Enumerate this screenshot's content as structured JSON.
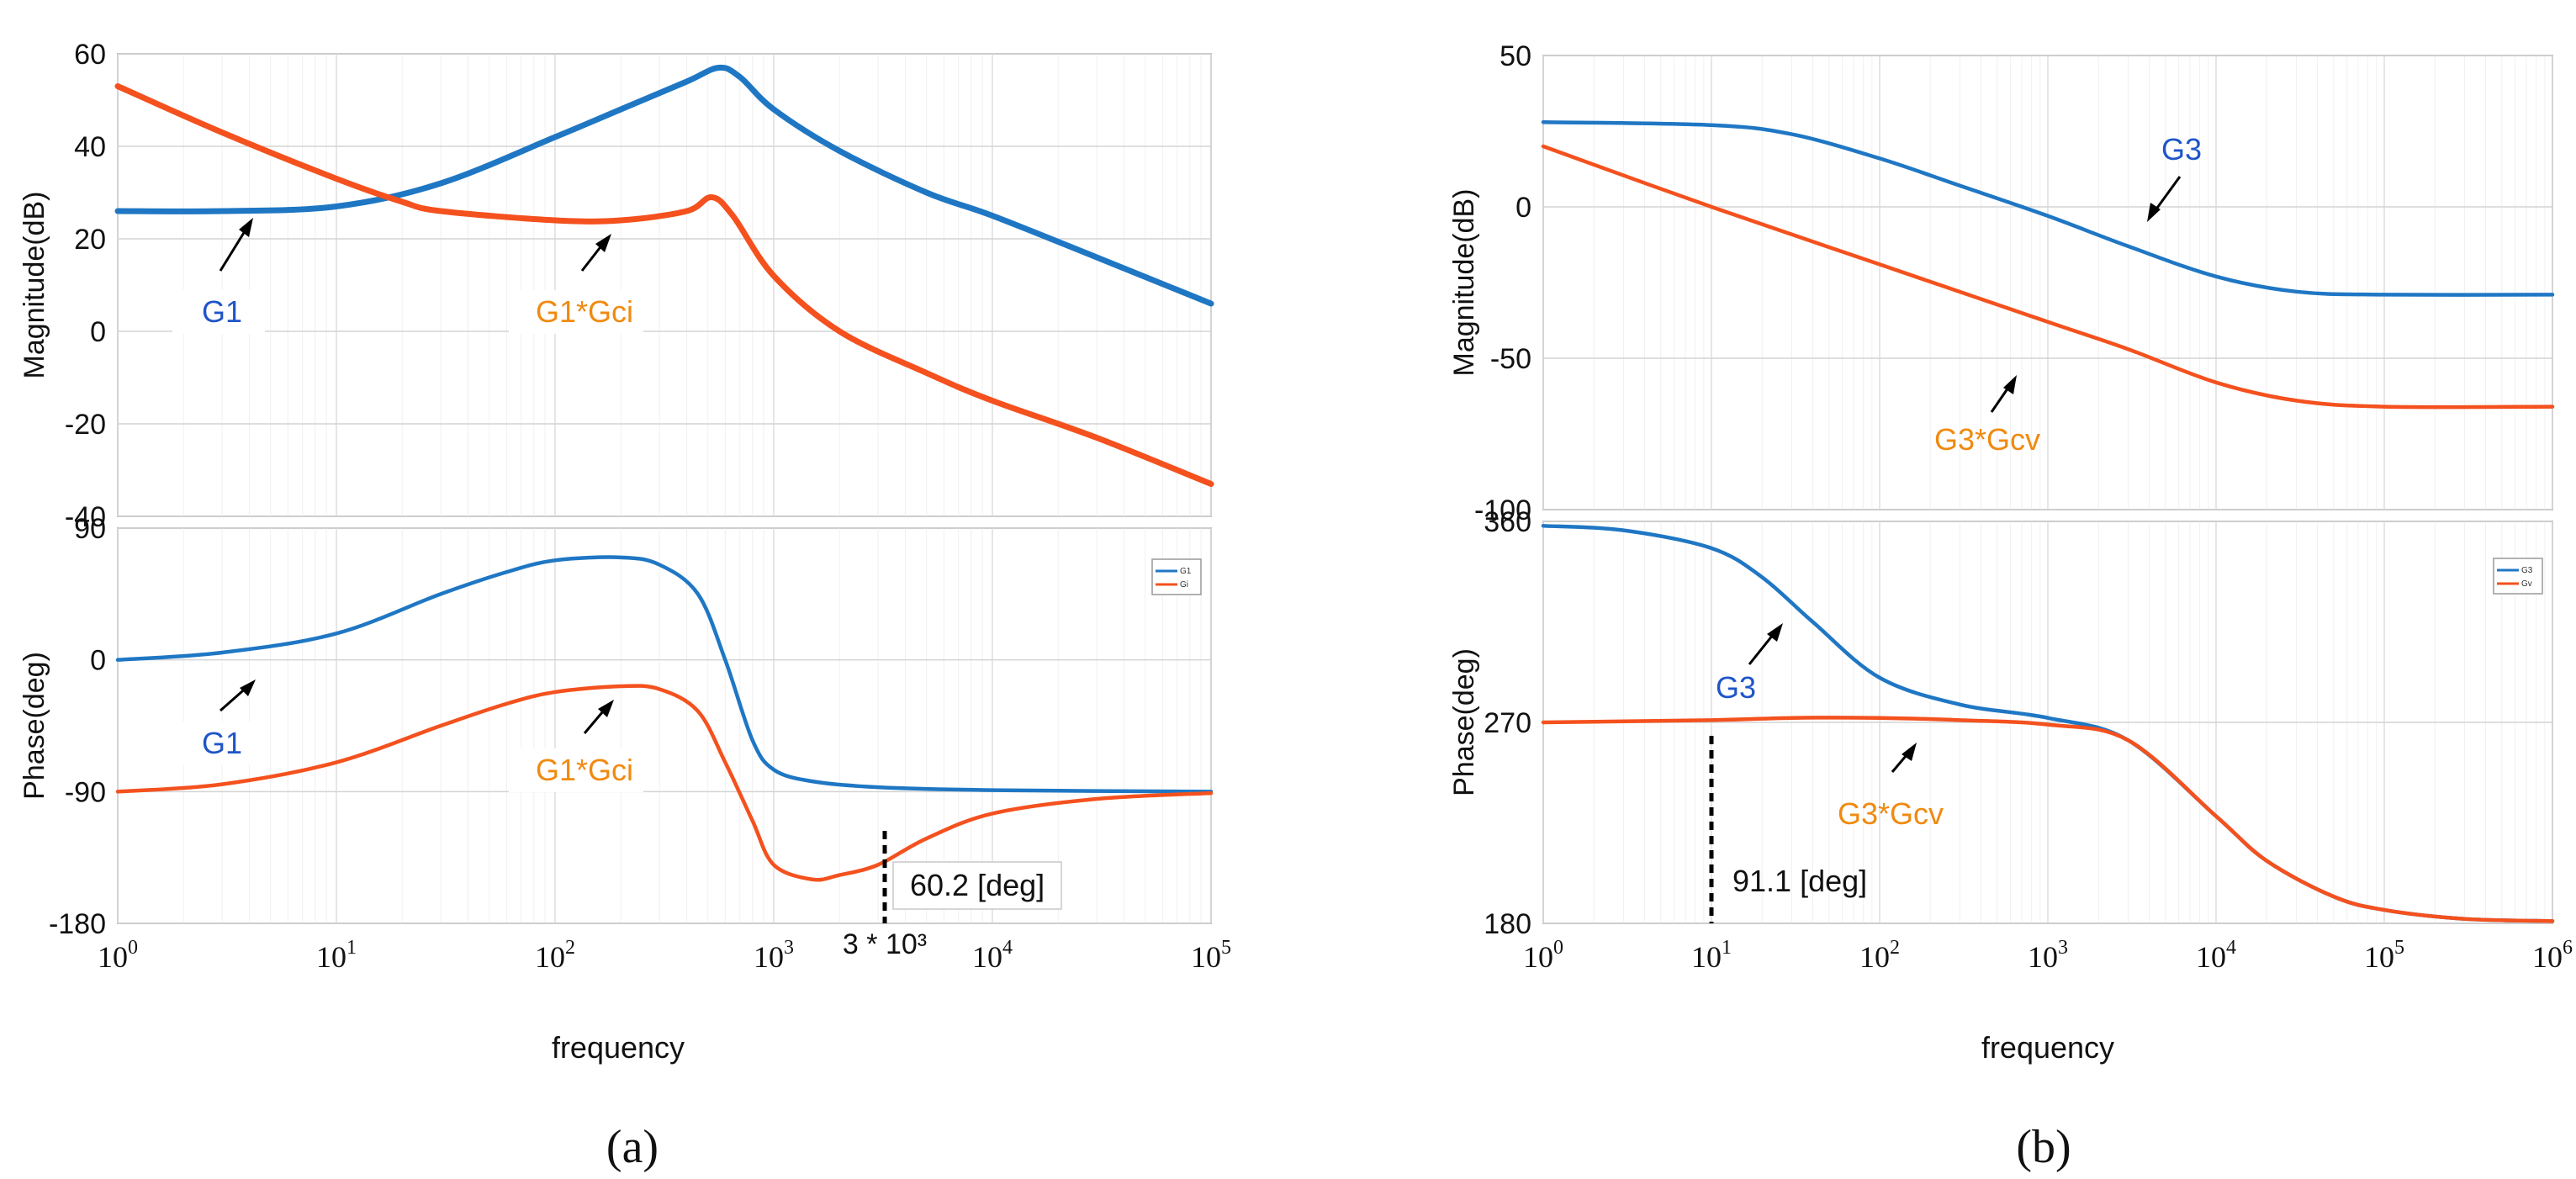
{
  "colors": {
    "blue": "#1f77c4",
    "orange": "#f4511e",
    "label_blue": "#1f55c8",
    "label_orange": "#f08a10"
  },
  "chart_data": [
    {
      "panel": "(a)",
      "type": "line",
      "subplot": "magnitude",
      "xscale": "log",
      "xlim": [
        1,
        100000
      ],
      "ylim": [
        -40,
        60
      ],
      "yticks": [
        60,
        40,
        20,
        0,
        -20,
        -40
      ],
      "ylabel": "Magnitude(dB)",
      "series": [
        {
          "name": "G1",
          "x": [
            1,
            3,
            10,
            30,
            100,
            200,
            400,
            560,
            700,
            1000,
            2000,
            5000,
            10000,
            30000,
            100000
          ],
          "y": [
            26,
            26,
            27,
            32,
            42,
            48,
            54,
            57,
            55,
            48,
            39,
            30,
            25,
            16,
            6
          ]
        },
        {
          "name": "G1*Gci",
          "x": [
            1,
            3,
            10,
            20,
            30,
            100,
            200,
            400,
            520,
            650,
            1000,
            2000,
            5000,
            10000,
            30000,
            100000
          ],
          "y": [
            53,
            43,
            33,
            28,
            26,
            24,
            24,
            26,
            29,
            25,
            12,
            0,
            -9,
            -15,
            -23,
            -33
          ]
        }
      ],
      "annotations": [
        {
          "text": "G1",
          "series": "G1"
        },
        {
          "text": "G1*Gci",
          "series": "G1*Gci"
        }
      ]
    },
    {
      "panel": "(a)",
      "type": "line",
      "subplot": "phase",
      "xscale": "log",
      "xlim": [
        1,
        100000
      ],
      "ylim": [
        -180,
        90
      ],
      "yticks": [
        90,
        0,
        -90,
        -180
      ],
      "ylabel": "Phase(deg)",
      "xlabel": "frequency",
      "xticks": [
        "0",
        "1",
        "2",
        "3",
        "4",
        "5"
      ],
      "xtick_base": "10",
      "legend": [
        "G1",
        "Gi"
      ],
      "series": [
        {
          "name": "G1",
          "x": [
            1,
            3,
            10,
            30,
            60,
            100,
            200,
            300,
            450,
            600,
            800,
            1000,
            1500,
            3000,
            10000,
            100000
          ],
          "y": [
            0,
            5,
            18,
            45,
            60,
            68,
            70,
            65,
            45,
            0,
            -55,
            -75,
            -83,
            -87,
            -89,
            -90
          ]
        },
        {
          "name": "G1*Gci",
          "x": [
            1,
            3,
            10,
            30,
            60,
            100,
            200,
            300,
            450,
            600,
            800,
            1000,
            1500,
            2000,
            3000,
            5000,
            10000,
            30000,
            100000
          ],
          "y": [
            -90,
            -85,
            -70,
            -45,
            -30,
            -22,
            -18,
            -20,
            -35,
            -70,
            -110,
            -140,
            -150,
            -147,
            -140,
            -122,
            -105,
            -95,
            -91
          ]
        }
      ],
      "annotations": [
        {
          "text": "G1",
          "series": "G1"
        },
        {
          "text": "G1*Gci",
          "series": "G1*Gci"
        },
        {
          "text": "60.2 [deg]",
          "x": 3000
        },
        {
          "text": "3 * 10³",
          "x": 3000
        }
      ]
    },
    {
      "panel": "(b)",
      "type": "line",
      "subplot": "magnitude",
      "xscale": "log",
      "xlim": [
        1,
        1000000
      ],
      "ylim": [
        -100,
        50
      ],
      "yticks": [
        50,
        0,
        -50,
        -100
      ],
      "ylabel": "Magnitude(dB)",
      "series": [
        {
          "name": "G3",
          "x": [
            1,
            10,
            30,
            100,
            300,
            1000,
            3000,
            10000,
            30000,
            100000,
            1000000
          ],
          "y": [
            28,
            27,
            24,
            16,
            7,
            -3,
            -13,
            -23,
            -28,
            -29,
            -29
          ]
        },
        {
          "name": "G3*Gcv",
          "x": [
            1,
            10,
            100,
            1000,
            3000,
            10000,
            30000,
            100000,
            1000000
          ],
          "y": [
            20,
            0,
            -19,
            -38,
            -47,
            -58,
            -64,
            -66,
            -66
          ]
        }
      ],
      "annotations": [
        {
          "text": "G3",
          "series": "G3"
        },
        {
          "text": "G3*Gcv",
          "series": "G3*Gcv"
        }
      ]
    },
    {
      "panel": "(b)",
      "type": "line",
      "subplot": "phase",
      "xscale": "log",
      "xlim": [
        1,
        1000000
      ],
      "ylim": [
        180,
        360
      ],
      "yticks": [
        360,
        270,
        180
      ],
      "ylabel": "Phase(deg)",
      "xlabel": "frequency",
      "xticks": [
        "0",
        "1",
        "2",
        "3",
        "4",
        "5",
        "6"
      ],
      "xtick_base": "10",
      "legend": [
        "G3",
        "Gv"
      ],
      "series": [
        {
          "name": "G3",
          "x": [
            1,
            3,
            10,
            20,
            40,
            100,
            300,
            1000,
            3000,
            10000,
            20000,
            50000,
            100000,
            300000,
            1000000
          ],
          "y": [
            358,
            356,
            348,
            335,
            315,
            290,
            278,
            272,
            262,
            228,
            208,
            192,
            186,
            182,
            181
          ]
        },
        {
          "name": "G3*Gcv",
          "x": [
            1,
            10,
            30,
            100,
            300,
            1000,
            3000,
            10000,
            20000,
            50000,
            100000,
            300000,
            1000000
          ],
          "y": [
            270,
            271,
            272,
            272,
            271,
            269,
            262,
            228,
            208,
            192,
            186,
            182,
            181
          ]
        }
      ],
      "annotations": [
        {
          "text": "G3",
          "series": "G3"
        },
        {
          "text": "G3*Gcv",
          "series": "G3*Gcv"
        },
        {
          "text": "91.1 [deg]",
          "x": 10
        }
      ]
    }
  ],
  "captions": {
    "a": "(a)",
    "b": "(b)"
  }
}
